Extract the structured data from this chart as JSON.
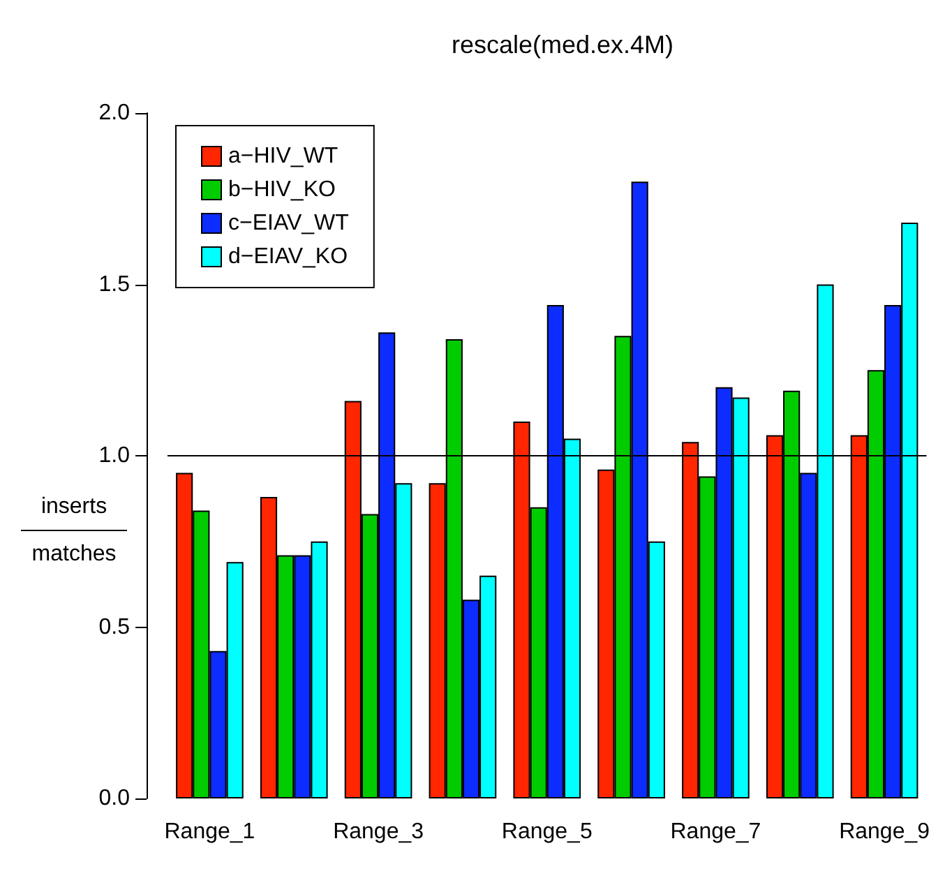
{
  "chart_data": {
    "type": "bar",
    "title": "rescale(med.ex.4M)",
    "ylabel": "inserts\nmatches",
    "categories": [
      "Range_1",
      null,
      "Range_3",
      null,
      "Range_5",
      null,
      "Range_7",
      null,
      "Range_9"
    ],
    "series": [
      {
        "name": "a−HIV_WT",
        "color": "#ff2600",
        "values": [
          0.95,
          0.88,
          1.16,
          0.92,
          1.1,
          0.96,
          1.04,
          1.06,
          1.06
        ]
      },
      {
        "name": "b−HIV_KO",
        "color": "#00cc00",
        "values": [
          0.84,
          0.71,
          0.83,
          1.34,
          0.85,
          1.35,
          0.94,
          1.19,
          1.25
        ]
      },
      {
        "name": "c−EIAV_WT",
        "color": "#0d2cff",
        "values": [
          0.43,
          0.71,
          1.36,
          0.58,
          1.44,
          1.8,
          1.2,
          0.95,
          1.44
        ]
      },
      {
        "name": "d−EIAV_KO",
        "color": "#00ffff",
        "values": [
          0.69,
          0.75,
          0.92,
          0.65,
          1.05,
          0.75,
          1.17,
          1.5,
          1.68
        ]
      }
    ],
    "ylim": [
      0,
      2
    ],
    "yticks": [
      {
        "value": 0,
        "label": "0.0"
      },
      {
        "value": 0.5,
        "label": "0.5"
      },
      {
        "value": 1,
        "label": "1.0"
      },
      {
        "value": 1.5,
        "label": "1.5"
      },
      {
        "value": 2,
        "label": "2.0"
      }
    ],
    "ref_lines": [
      {
        "axis": "y",
        "value": 1,
        "color": "#000000"
      }
    ],
    "grid": false,
    "legend": "top left"
  }
}
